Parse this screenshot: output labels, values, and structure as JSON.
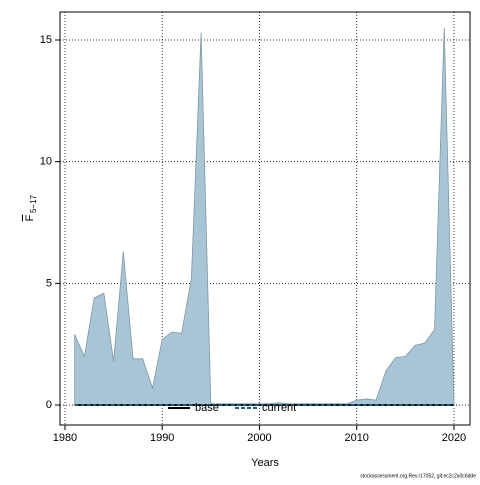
{
  "chart_data": {
    "type": "area",
    "xlabel": "Years",
    "ylabel": {
      "main": "F",
      "sub": "5−17"
    },
    "footer": "stockassessment.org,Rev.r17052, git:ec2c2a0c6dde",
    "x": [
      1981,
      1982,
      1983,
      1984,
      1985,
      1986,
      1987,
      1988,
      1989,
      1990,
      1991,
      1992,
      1993,
      1994,
      1995,
      1996,
      1997,
      1998,
      1999,
      2000,
      2001,
      2002,
      2003,
      2004,
      2005,
      2006,
      2007,
      2008,
      2009,
      2010,
      2011,
      2012,
      2013,
      2014,
      2015,
      2016,
      2017,
      2018,
      2019,
      2020
    ],
    "band": {
      "color": "#a7c5d5",
      "values": [
        2.9,
        2.0,
        4.4,
        4.6,
        1.8,
        6.3,
        1.9,
        1.9,
        0.7,
        2.7,
        3.0,
        2.95,
        5.2,
        15.3,
        0.05,
        0.05,
        0.05,
        0.05,
        0.05,
        0.05,
        0.05,
        0.1,
        0.05,
        0.05,
        0.05,
        0.05,
        0.05,
        0.05,
        0.05,
        0.2,
        0.25,
        0.2,
        1.4,
        1.95,
        2.0,
        2.45,
        2.55,
        3.1,
        15.5,
        0.05
      ]
    },
    "series": [
      {
        "name": "base",
        "color": "#000000",
        "dash": false,
        "values": [
          0,
          0,
          0,
          0,
          0,
          0,
          0,
          0,
          0,
          0,
          0,
          0,
          0,
          0,
          0,
          0,
          0,
          0,
          0,
          0,
          0,
          0,
          0,
          0,
          0,
          0,
          0,
          0,
          0,
          0,
          0,
          0,
          0,
          0,
          0,
          0,
          0,
          0,
          0,
          0
        ]
      },
      {
        "name": "current",
        "color": "#1f5f7a",
        "dash": true,
        "values": [
          0,
          0,
          0,
          0,
          0,
          0,
          0,
          0,
          0,
          0,
          0,
          0,
          0,
          0,
          0,
          0,
          0,
          0,
          0,
          0,
          0,
          0,
          0,
          0,
          0,
          0,
          0,
          0,
          0,
          0,
          0,
          0,
          0,
          0,
          0,
          0,
          0,
          0,
          0,
          0
        ]
      }
    ],
    "xlim": [
      1979.49,
      2021.65
    ],
    "ylim": [
      -0.82,
      16.15
    ],
    "xticks": [
      1980,
      1990,
      2000,
      2010,
      2020
    ],
    "yticks": [
      0,
      5,
      10,
      15
    ],
    "grid": true
  }
}
